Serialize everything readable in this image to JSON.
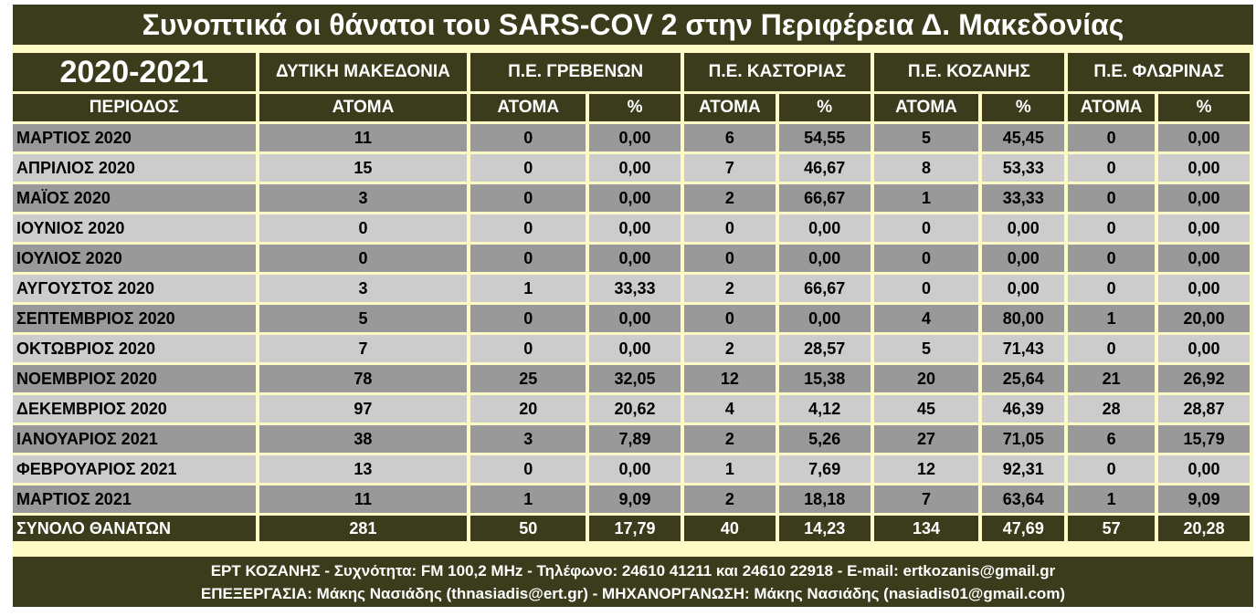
{
  "title": "Συνοπτικά οι θάνατοι του SARS-COV 2 στην Περιφέρεια Δ. Μακεδονίας",
  "header": {
    "year": "2020-2021",
    "regions": [
      "ΔΥΤΙΚΗ ΜΑΚΕΔΟΝΙΑ",
      "Π.Ε. ΓΡΕΒΕΝΩΝ",
      "Π.Ε. ΚΑΣΤΟΡΙΑΣ",
      "Π.Ε. ΚΟΖΑΝΗΣ",
      "Π.Ε. ΦΛΩΡΙΝΑΣ"
    ],
    "period_label": "ΠΕΡΙΟΔΟΣ",
    "atoma_label": "ΑΤΟΜΑ",
    "pct_label": "%"
  },
  "colors": {
    "dark": "#3a3c1b",
    "row_dark": "#999999",
    "row_light": "#cccccc",
    "frame": "#fffbc6"
  },
  "rows": [
    [
      "ΜΑΡΤΙΟΣ 2020",
      "11",
      "0",
      "0,00",
      "6",
      "54,55",
      "5",
      "45,45",
      "0",
      "0,00"
    ],
    [
      "ΑΠΡΙΛΙΟΣ 2020",
      "15",
      "0",
      "0,00",
      "7",
      "46,67",
      "8",
      "53,33",
      "0",
      "0,00"
    ],
    [
      "ΜΑΪΟΣ 2020",
      "3",
      "0",
      "0,00",
      "2",
      "66,67",
      "1",
      "33,33",
      "0",
      "0,00"
    ],
    [
      "ΙΟΥΝΙΟΣ 2020",
      "0",
      "0",
      "0,00",
      "0",
      "0,00",
      "0",
      "0,00",
      "0",
      "0,00"
    ],
    [
      "ΙΟΥΛΙΟΣ 2020",
      "0",
      "0",
      "0,00",
      "0",
      "0,00",
      "0",
      "0,00",
      "0",
      "0,00"
    ],
    [
      "ΑΥΓΟΥΣΤΟΣ 2020",
      "3",
      "1",
      "33,33",
      "2",
      "66,67",
      "0",
      "0,00",
      "0",
      "0,00"
    ],
    [
      "ΣΕΠΤΕΜΒΡΙΟΣ 2020",
      "5",
      "0",
      "0,00",
      "0",
      "0,00",
      "4",
      "80,00",
      "1",
      "20,00"
    ],
    [
      "ΟΚΤΩΒΡΙΟΣ 2020",
      "7",
      "0",
      "0,00",
      "2",
      "28,57",
      "5",
      "71,43",
      "0",
      "0,00"
    ],
    [
      "ΝΟΕΜΒΡΙΟΣ 2020",
      "78",
      "25",
      "32,05",
      "12",
      "15,38",
      "20",
      "25,64",
      "21",
      "26,92"
    ],
    [
      "ΔΕΚΕΜΒΡΙΟΣ 2020",
      "97",
      "20",
      "20,62",
      "4",
      "4,12",
      "45",
      "46,39",
      "28",
      "28,87"
    ],
    [
      "ΙΑΝΟΥΑΡΙΟΣ 2021",
      "38",
      "3",
      "7,89",
      "2",
      "5,26",
      "27",
      "71,05",
      "6",
      "15,79"
    ],
    [
      "ΦΕΒΡΟΥΑΡΙΟΣ 2021",
      "13",
      "0",
      "0,00",
      "1",
      "7,69",
      "12",
      "92,31",
      "0",
      "0,00"
    ],
    [
      "ΜΑΡΤΙΟΣ 2021",
      "11",
      "1",
      "9,09",
      "2",
      "18,18",
      "7",
      "63,64",
      "1",
      "9,09"
    ]
  ],
  "total": [
    "ΣΥΝΟΛΟ ΘΑΝΑΤΩΝ",
    "281",
    "50",
    "17,79",
    "40",
    "14,23",
    "134",
    "47,69",
    "57",
    "20,28"
  ],
  "footer": {
    "line1": "ΕΡΤ ΚΟΖΑΝΗΣ - Συχνότητα:  FM 100,2 MHz - Τηλέφωνο: 24610 41211 και 24610 22918 - E-mail: ertkozanis@gmail.gr",
    "line2": "ΕΠΕΞΕΡΓΑΣΙΑ: Μάκης Νασιάδης (thnasiadis@ert.gr) - ΜΗΧΑΝΟΡΓΑΝΩΣΗ: Μάκης Νασιάδης (nasiadis01@gmail.com)"
  }
}
